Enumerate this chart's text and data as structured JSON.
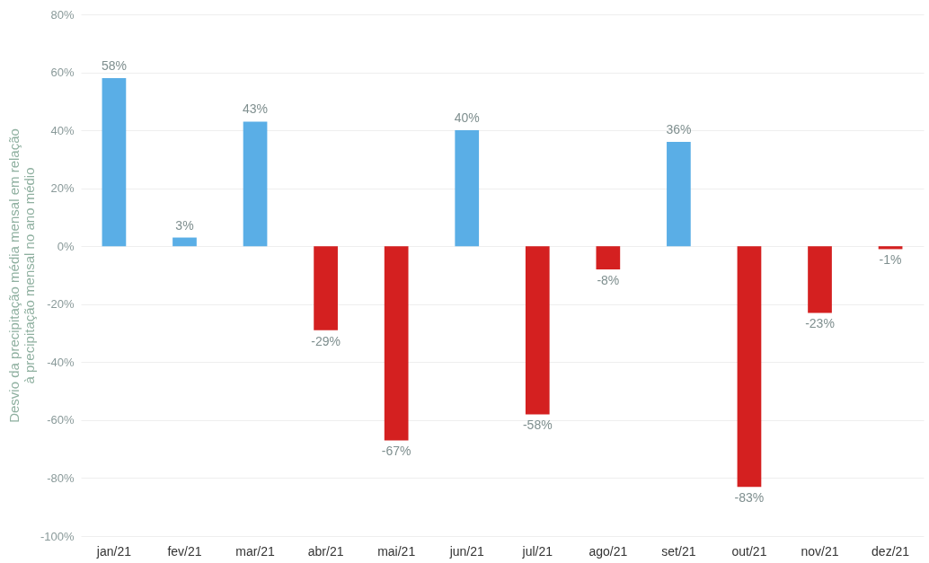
{
  "chart_data": {
    "type": "bar",
    "ylabel": "Desvio da precipitação média mensal em relação à precipitação mensal no ano médio",
    "categories": [
      "jan/21",
      "fev/21",
      "mar/21",
      "abr/21",
      "mai/21",
      "jun/21",
      "jul/21",
      "ago/21",
      "set/21",
      "out/21",
      "nov/21",
      "dez/21"
    ],
    "values": [
      58,
      3,
      43,
      -29,
      -67,
      40,
      -58,
      -8,
      36,
      -83,
      -23,
      -1
    ],
    "colors": [
      "#5aaee6",
      "#5aaee6",
      "#5aaee6",
      "#d42020",
      "#d42020",
      "#5aaee6",
      "#d42020",
      "#d42020",
      "#5aaee6",
      "#d42020",
      "#d42020",
      "#d42020"
    ],
    "value_labels": [
      "58%",
      "3%",
      "43%",
      "-29%",
      "-67%",
      "40%",
      "-58%",
      "-8%",
      "36%",
      "-83%",
      "-23%",
      "-1%"
    ],
    "ylim": [
      -100,
      80
    ],
    "yticks": [
      {
        "value": -100,
        "label": "-100%"
      },
      {
        "value": -80,
        "label": "-80%"
      },
      {
        "value": -60,
        "label": "-60%"
      },
      {
        "value": -40,
        "label": "-40%"
      },
      {
        "value": -20,
        "label": "-20%"
      },
      {
        "value": 0,
        "label": "0%"
      },
      {
        "value": 20,
        "label": "20%"
      },
      {
        "value": 40,
        "label": "40%"
      },
      {
        "value": 60,
        "label": "60%"
      },
      {
        "value": 80,
        "label": "80%"
      }
    ],
    "grid": "y"
  }
}
